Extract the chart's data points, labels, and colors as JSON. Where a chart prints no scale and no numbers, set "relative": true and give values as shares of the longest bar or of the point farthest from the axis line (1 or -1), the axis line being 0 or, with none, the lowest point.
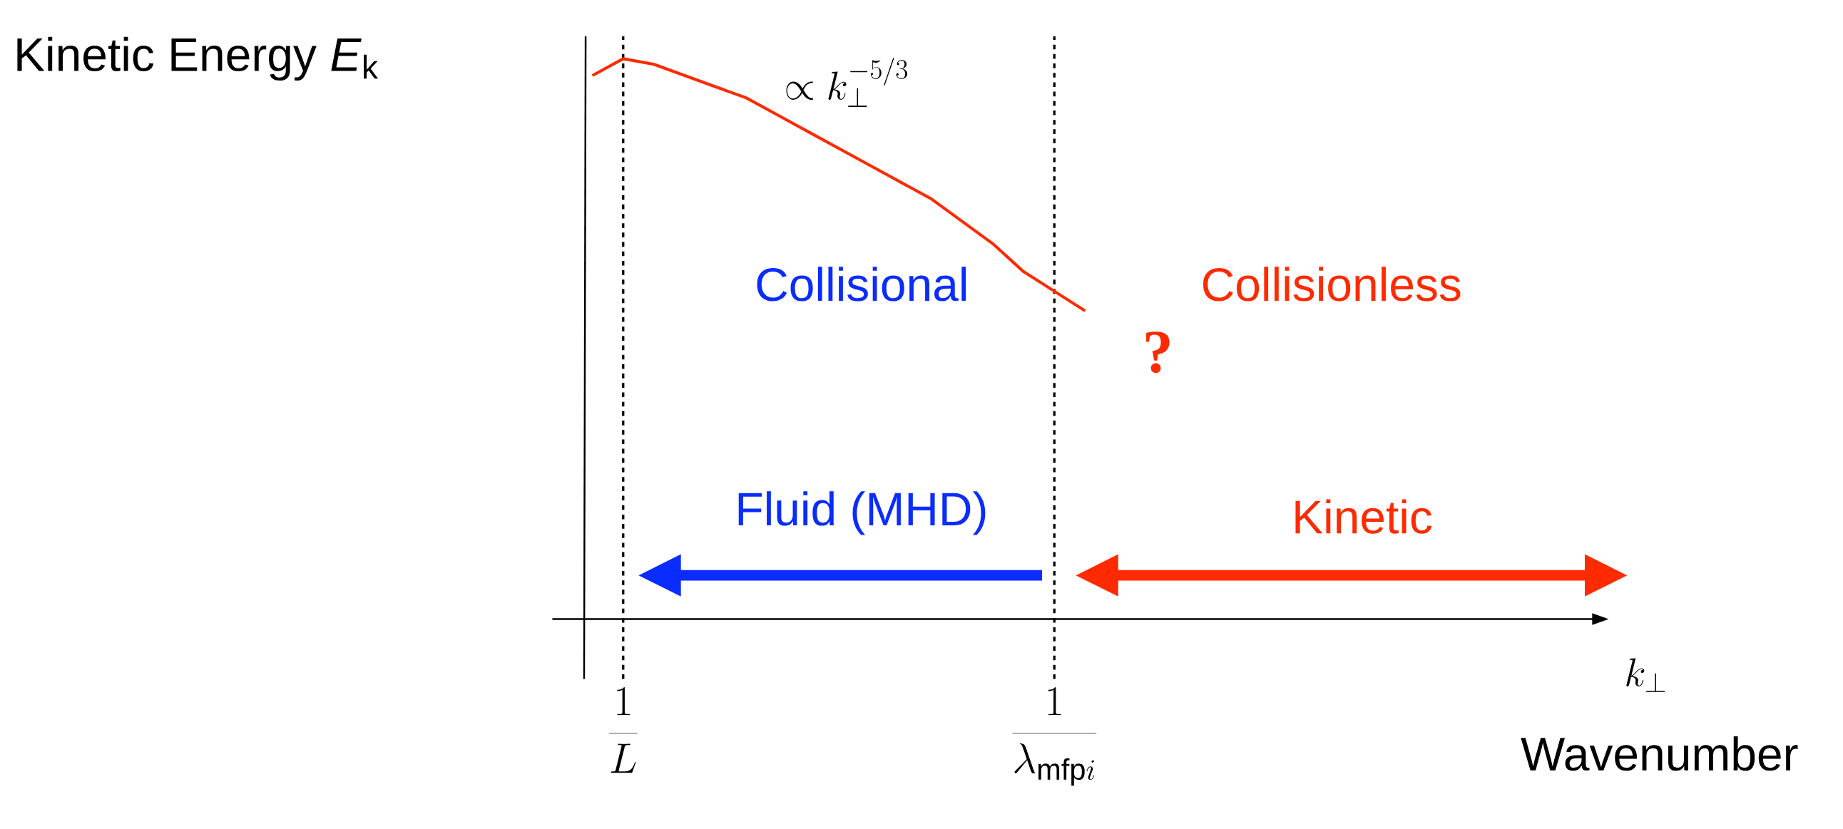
{
  "chart_data": {
    "type": "line",
    "relative": true,
    "grid": "x",
    "categories": [
      null,
      "\\frac{1}{L}",
      null,
      null,
      null,
      null,
      null,
      null,
      null,
      null,
      null,
      null,
      null,
      null,
      null,
      "\\frac{1}{\\lambda_{\\mathrm{mfp}i}}",
      null
    ],
    "series": [
      {
        "color": "#ff2a00",
        "values": [
          0.97,
          1.0,
          0.99,
          0.97,
          0.95,
          0.93,
          0.9,
          0.87,
          0.84,
          0.81,
          0.78,
          0.75,
          0.71,
          0.67,
          0.62,
          0.585,
          0.55
        ]
      }
    ],
    "ylabel": "Kinetic Energy *E*$_{k}$",
    "annotations": [
      "\\propto k_\\perp^{-5/3}",
      "Collisional",
      "Collisionless",
      "?",
      "Fluid (MHD)",
      "Kinetic",
      "k_\\perp",
      "Wavenumber"
    ]
  }
}
